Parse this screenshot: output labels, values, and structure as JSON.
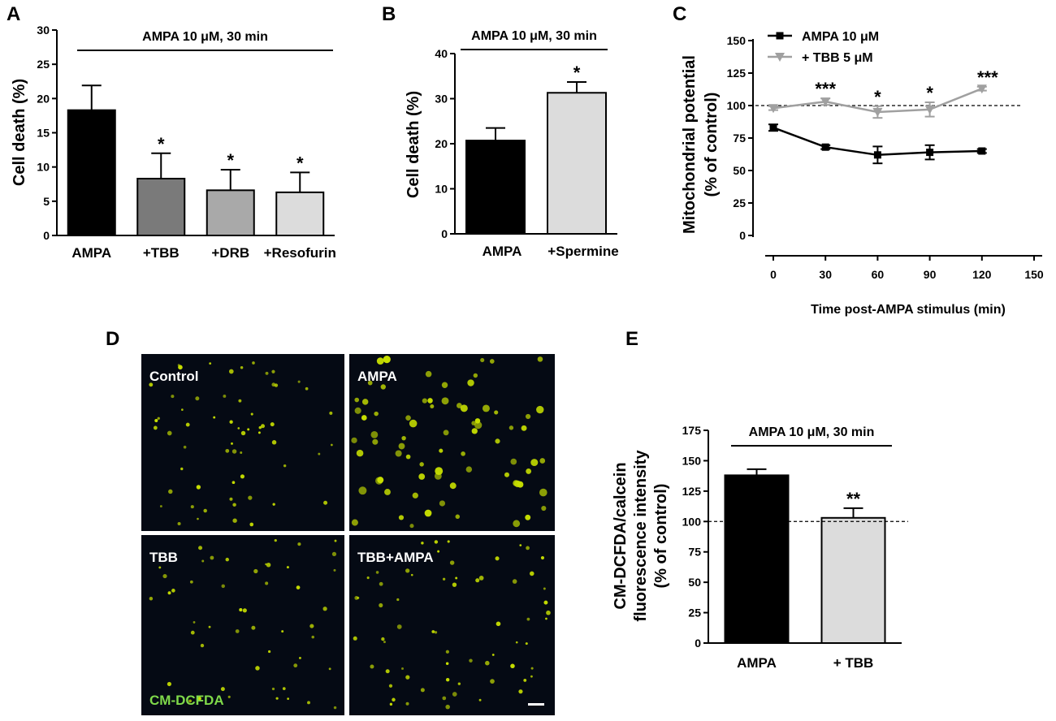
{
  "panel_labels": {
    "a": "A",
    "b": "B",
    "c": "C",
    "d": "D",
    "e": "E"
  },
  "chart_data": [
    {
      "panel": "A",
      "type": "bar",
      "condition_label": "AMPA 10 μM, 30 min",
      "ylabel": "Cell death (%)",
      "categories": [
        "AMPA",
        "+TBB",
        "+DRB",
        "+Resofurin"
      ],
      "values": [
        18.3,
        8.3,
        6.6,
        6.3
      ],
      "errors": [
        3.6,
        3.7,
        3.0,
        2.9
      ],
      "significance": [
        "",
        "*",
        "*",
        "*"
      ],
      "bar_colors": [
        "#000000",
        "#7a7a7a",
        "#a9a9a9",
        "#dcdcdc"
      ],
      "yticks": [
        "0",
        "5",
        "10",
        "15",
        "20",
        "25",
        "30"
      ],
      "ylim": [
        0,
        30
      ]
    },
    {
      "panel": "B",
      "type": "bar",
      "condition_label": "AMPA 10 μM, 30 min",
      "ylabel": "Cell death (%)",
      "categories": [
        "AMPA",
        "+Spermine"
      ],
      "values": [
        20.7,
        31.3
      ],
      "errors": [
        2.8,
        2.4
      ],
      "significance": [
        "",
        "*"
      ],
      "bar_colors": [
        "#000000",
        "#dcdcdc"
      ],
      "yticks": [
        "0",
        "10",
        "20",
        "30",
        "40"
      ],
      "ylim": [
        0,
        40
      ]
    },
    {
      "panel": "C",
      "type": "line",
      "xlabel": "Time post-AMPA stimulus (min)",
      "ylabel_line1": "Mitochondrial potential",
      "ylabel_line2": "(% of control)",
      "xticks": [
        "0",
        "30",
        "60",
        "90",
        "120",
        "150"
      ],
      "xlim": [
        0,
        150
      ],
      "yticks": [
        "0",
        "25",
        "50",
        "75",
        "100",
        "125",
        "150"
      ],
      "ylim": [
        0,
        150
      ],
      "reference_line": 100,
      "legend_position": "top-left",
      "series": [
        {
          "name": "AMPA 10 μM",
          "color": "#000000",
          "marker": "square",
          "x": [
            0,
            30,
            60,
            90,
            120
          ],
          "y": [
            83,
            68,
            62,
            64,
            65
          ],
          "errors": [
            2.5,
            1.5,
            6.5,
            5.5,
            1.5
          ]
        },
        {
          "name": "+ TBB 5 μM",
          "color": "#a0a0a0",
          "marker": "triangle-down",
          "x": [
            0,
            30,
            60,
            90,
            120
          ],
          "y": [
            98,
            103,
            95,
            97,
            113
          ],
          "errors": [
            1.5,
            2.5,
            4.5,
            5.5,
            1.5
          ]
        }
      ],
      "significance": [
        {
          "x": 30,
          "label": "***"
        },
        {
          "x": 60,
          "label": "*"
        },
        {
          "x": 90,
          "label": "*"
        },
        {
          "x": 120,
          "label": "***"
        }
      ]
    },
    {
      "panel": "E",
      "type": "bar",
      "condition_label": "AMPA 10 μM, 30 min",
      "ylabel_line1": "CM-DCFDA/calcein",
      "ylabel_line2": "fluorescence intensity",
      "ylabel_line3": "(% of control)",
      "categories": [
        "AMPA",
        "+ TBB"
      ],
      "values": [
        138,
        103
      ],
      "errors": [
        5,
        8
      ],
      "significance": [
        "",
        "**"
      ],
      "bar_colors": [
        "#000000",
        "#dcdcdc"
      ],
      "yticks": [
        "0",
        "25",
        "50",
        "75",
        "100",
        "125",
        "150",
        "175"
      ],
      "ylim": [
        0,
        175
      ],
      "reference_line": 100
    }
  ],
  "micrographs": {
    "labels": [
      "Control",
      "AMPA",
      "TBB",
      "TBB+AMPA"
    ],
    "stain_label": "CM-DCFDA",
    "background_color": "#050a14",
    "cell_color": "#c8e000"
  }
}
